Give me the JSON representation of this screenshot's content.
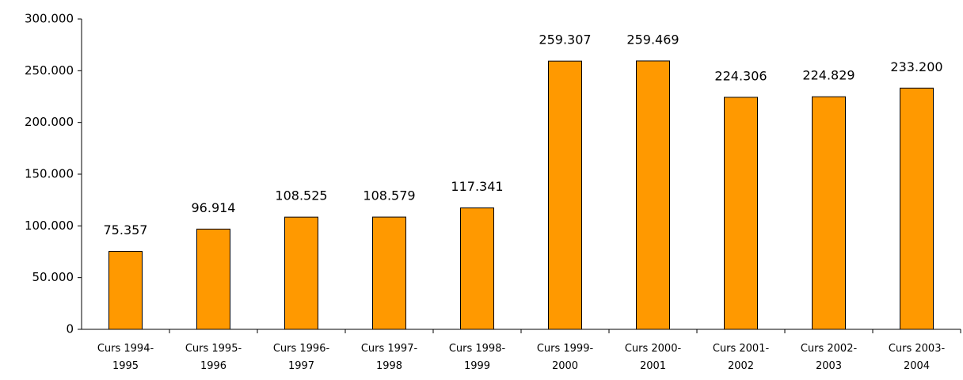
{
  "chart_data": {
    "type": "bar",
    "categories": [
      "Curs 1994-1995",
      "Curs 1995-1996",
      "Curs 1996-1997",
      "Curs 1997-1998",
      "Curs 1998-1999",
      "Curs 1999-2000",
      "Curs 2000-2001",
      "Curs 2001-2002",
      "Curs 2002-2003",
      "Curs 2003-2004"
    ],
    "values": [
      75357,
      96914,
      108525,
      108579,
      117341,
      259307,
      259469,
      224306,
      224829,
      233200
    ],
    "value_labels": [
      "75.357",
      "96.914",
      "108.525",
      "108.579",
      "117.341",
      "259.307",
      "259.469",
      "224.306",
      "224.829",
      "233.200"
    ],
    "color": "#ff9900",
    "ylim": [
      0,
      300000
    ],
    "yticks": [
      0,
      {
        "value": 50000,
        "label": "50.000"
      },
      {
        "value": 100000,
        "label": "100.000"
      },
      {
        "value": 150000,
        "label": "150.000"
      },
      {
        "value": 200000,
        "label": "200.000"
      },
      {
        "value": 250000,
        "label": "250.000"
      },
      {
        "value": 300000,
        "label": "300.000"
      }
    ]
  }
}
